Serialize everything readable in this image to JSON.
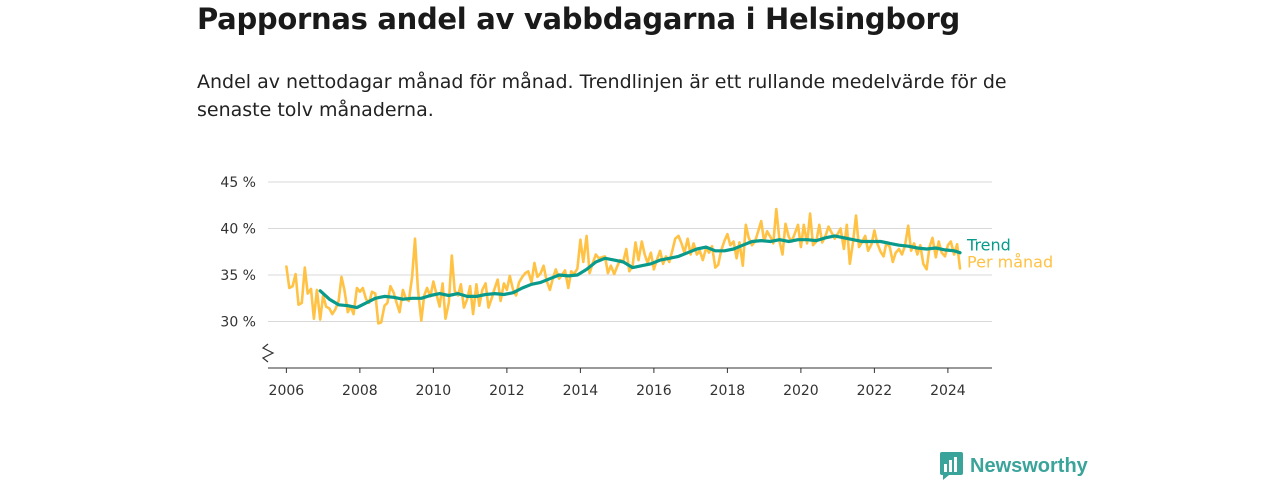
{
  "header": {
    "title": "Pappornas andel av vabbdagarna i Helsingborg",
    "subtitle": "Andel av nettodagar månad för månad. Trendlinjen är ett rullande medelvärde för de senaste tolv månaderna."
  },
  "brand": {
    "name": "Newsworthy",
    "color": "#3aa39a"
  },
  "chart_data": {
    "type": "line",
    "title": "Pappornas andel av vabbdagarna i Helsingborg",
    "subtitle": "Andel av nettodagar månad för månad. Trendlinjen är ett rullande medelvärde för de senaste tolv månaderna.",
    "xlabel": "",
    "ylabel": "",
    "xlim": [
      2005.5,
      2025.2
    ],
    "ylim": [
      25,
      45
    ],
    "y_axis_break": true,
    "y_ticks": [
      30,
      35,
      40,
      45
    ],
    "y_tick_labels": [
      "30 %",
      "35 %",
      "40 %",
      "45 %"
    ],
    "x_ticks": [
      2006,
      2008,
      2010,
      2012,
      2014,
      2016,
      2018,
      2020,
      2022,
      2024
    ],
    "x_tick_labels": [
      "2006",
      "2008",
      "2010",
      "2012",
      "2014",
      "2016",
      "2018",
      "2020",
      "2022",
      "2024"
    ],
    "grid": true,
    "legend": "direct labels at right end of lines",
    "series": [
      {
        "name": "Per månad",
        "color": "#ffc244",
        "points": [
          [
            2006.0,
            35.9
          ],
          [
            2006.08,
            33.6
          ],
          [
            2006.17,
            33.8
          ],
          [
            2006.25,
            35.1
          ],
          [
            2006.33,
            31.8
          ],
          [
            2006.42,
            32.0
          ],
          [
            2006.5,
            35.8
          ],
          [
            2006.58,
            33.0
          ],
          [
            2006.67,
            33.5
          ],
          [
            2006.75,
            30.3
          ],
          [
            2006.83,
            33.4
          ],
          [
            2006.92,
            30.2
          ],
          [
            2007.0,
            32.8
          ],
          [
            2007.08,
            31.6
          ],
          [
            2007.17,
            31.4
          ],
          [
            2007.25,
            30.8
          ],
          [
            2007.33,
            31.3
          ],
          [
            2007.42,
            32.2
          ],
          [
            2007.5,
            34.8
          ],
          [
            2007.58,
            33.4
          ],
          [
            2007.67,
            31.0
          ],
          [
            2007.75,
            31.6
          ],
          [
            2007.83,
            30.8
          ],
          [
            2007.92,
            33.6
          ],
          [
            2008.0,
            33.2
          ],
          [
            2008.08,
            33.6
          ],
          [
            2008.17,
            32.4
          ],
          [
            2008.25,
            32.0
          ],
          [
            2008.33,
            33.2
          ],
          [
            2008.42,
            33.0
          ],
          [
            2008.5,
            29.8
          ],
          [
            2008.58,
            29.9
          ],
          [
            2008.67,
            31.7
          ],
          [
            2008.75,
            32.0
          ],
          [
            2008.83,
            33.8
          ],
          [
            2008.92,
            33.1
          ],
          [
            2009.0,
            32.0
          ],
          [
            2009.08,
            31.0
          ],
          [
            2009.17,
            33.4
          ],
          [
            2009.25,
            32.5
          ],
          [
            2009.33,
            32.2
          ],
          [
            2009.42,
            34.8
          ],
          [
            2009.5,
            38.9
          ],
          [
            2009.58,
            33.5
          ],
          [
            2009.67,
            30.1
          ],
          [
            2009.75,
            32.8
          ],
          [
            2009.83,
            33.6
          ],
          [
            2009.92,
            32.7
          ],
          [
            2010.0,
            34.3
          ],
          [
            2010.08,
            33.0
          ],
          [
            2010.17,
            31.6
          ],
          [
            2010.25,
            34.1
          ],
          [
            2010.33,
            30.3
          ],
          [
            2010.42,
            32.0
          ],
          [
            2010.5,
            37.1
          ],
          [
            2010.58,
            33.3
          ],
          [
            2010.67,
            32.8
          ],
          [
            2010.75,
            34.0
          ],
          [
            2010.83,
            31.5
          ],
          [
            2010.92,
            32.4
          ],
          [
            2011.0,
            33.8
          ],
          [
            2011.08,
            30.8
          ],
          [
            2011.17,
            34.0
          ],
          [
            2011.25,
            31.7
          ],
          [
            2011.33,
            33.4
          ],
          [
            2011.42,
            34.1
          ],
          [
            2011.5,
            31.5
          ],
          [
            2011.58,
            32.4
          ],
          [
            2011.67,
            33.6
          ],
          [
            2011.75,
            34.5
          ],
          [
            2011.83,
            32.2
          ],
          [
            2011.92,
            34.1
          ],
          [
            2012.0,
            33.4
          ],
          [
            2012.08,
            34.9
          ],
          [
            2012.17,
            33.4
          ],
          [
            2012.25,
            32.8
          ],
          [
            2012.33,
            34.2
          ],
          [
            2012.42,
            34.8
          ],
          [
            2012.5,
            35.2
          ],
          [
            2012.58,
            35.4
          ],
          [
            2012.67,
            34.2
          ],
          [
            2012.75,
            36.3
          ],
          [
            2012.83,
            34.8
          ],
          [
            2012.92,
            35.2
          ],
          [
            2013.0,
            36.0
          ],
          [
            2013.08,
            34.4
          ],
          [
            2013.17,
            33.4
          ],
          [
            2013.25,
            34.6
          ],
          [
            2013.33,
            35.6
          ],
          [
            2013.42,
            34.6
          ],
          [
            2013.5,
            35.0
          ],
          [
            2013.58,
            35.5
          ],
          [
            2013.67,
            33.6
          ],
          [
            2013.75,
            35.4
          ],
          [
            2013.83,
            35.1
          ],
          [
            2013.92,
            35.7
          ],
          [
            2014.0,
            38.8
          ],
          [
            2014.08,
            36.4
          ],
          [
            2014.17,
            39.2
          ],
          [
            2014.25,
            35.2
          ],
          [
            2014.33,
            36.2
          ],
          [
            2014.42,
            37.2
          ],
          [
            2014.5,
            36.8
          ],
          [
            2014.58,
            36.9
          ],
          [
            2014.67,
            37.0
          ],
          [
            2014.75,
            35.2
          ],
          [
            2014.83,
            36.0
          ],
          [
            2014.92,
            35.1
          ],
          [
            2015.0,
            35.9
          ],
          [
            2015.08,
            36.6
          ],
          [
            2015.17,
            36.5
          ],
          [
            2015.25,
            37.8
          ],
          [
            2015.33,
            35.4
          ],
          [
            2015.42,
            36.0
          ],
          [
            2015.5,
            38.5
          ],
          [
            2015.58,
            36.6
          ],
          [
            2015.67,
            38.6
          ],
          [
            2015.75,
            37.2
          ],
          [
            2015.83,
            36.3
          ],
          [
            2015.92,
            37.4
          ],
          [
            2016.0,
            35.6
          ],
          [
            2016.08,
            36.6
          ],
          [
            2016.17,
            37.6
          ],
          [
            2016.25,
            36.2
          ],
          [
            2016.33,
            37.0
          ],
          [
            2016.42,
            36.4
          ],
          [
            2016.5,
            37.6
          ],
          [
            2016.58,
            38.9
          ],
          [
            2016.67,
            39.2
          ],
          [
            2016.75,
            38.4
          ],
          [
            2016.83,
            37.4
          ],
          [
            2016.92,
            38.9
          ],
          [
            2017.0,
            37.2
          ],
          [
            2017.08,
            38.4
          ],
          [
            2017.17,
            37.2
          ],
          [
            2017.25,
            37.6
          ],
          [
            2017.33,
            36.6
          ],
          [
            2017.42,
            37.9
          ],
          [
            2017.5,
            37.4
          ],
          [
            2017.58,
            38.1
          ],
          [
            2017.67,
            35.8
          ],
          [
            2017.75,
            36.1
          ],
          [
            2017.83,
            37.6
          ],
          [
            2017.92,
            38.7
          ],
          [
            2018.0,
            39.4
          ],
          [
            2018.08,
            38.2
          ],
          [
            2018.17,
            38.6
          ],
          [
            2018.25,
            36.8
          ],
          [
            2018.33,
            38.5
          ],
          [
            2018.42,
            36.0
          ],
          [
            2018.5,
            40.4
          ],
          [
            2018.58,
            39.0
          ],
          [
            2018.67,
            38.2
          ],
          [
            2018.75,
            38.6
          ],
          [
            2018.83,
            39.6
          ],
          [
            2018.92,
            40.8
          ],
          [
            2019.0,
            38.6
          ],
          [
            2019.08,
            39.7
          ],
          [
            2019.17,
            39.1
          ],
          [
            2019.25,
            38.4
          ],
          [
            2019.33,
            42.1
          ],
          [
            2019.42,
            38.6
          ],
          [
            2019.5,
            37.2
          ],
          [
            2019.58,
            40.5
          ],
          [
            2019.67,
            39.1
          ],
          [
            2019.75,
            38.6
          ],
          [
            2019.83,
            39.4
          ],
          [
            2019.92,
            40.4
          ],
          [
            2020.0,
            38.0
          ],
          [
            2020.08,
            40.4
          ],
          [
            2020.17,
            38.4
          ],
          [
            2020.25,
            41.6
          ],
          [
            2020.33,
            38.2
          ],
          [
            2020.42,
            38.6
          ],
          [
            2020.5,
            40.4
          ],
          [
            2020.58,
            38.5
          ],
          [
            2020.67,
            39.2
          ],
          [
            2020.75,
            40.2
          ],
          [
            2020.83,
            39.6
          ],
          [
            2020.92,
            38.9
          ],
          [
            2021.0,
            39.4
          ],
          [
            2021.08,
            40.0
          ],
          [
            2021.17,
            37.8
          ],
          [
            2021.25,
            40.4
          ],
          [
            2021.33,
            36.2
          ],
          [
            2021.42,
            38.6
          ],
          [
            2021.5,
            41.4
          ],
          [
            2021.58,
            38.0
          ],
          [
            2021.67,
            38.6
          ],
          [
            2021.75,
            39.2
          ],
          [
            2021.83,
            37.6
          ],
          [
            2021.92,
            38.3
          ],
          [
            2022.0,
            39.8
          ],
          [
            2022.08,
            38.4
          ],
          [
            2022.17,
            37.5
          ],
          [
            2022.25,
            37.0
          ],
          [
            2022.33,
            38.5
          ],
          [
            2022.42,
            38.0
          ],
          [
            2022.5,
            36.4
          ],
          [
            2022.58,
            37.4
          ],
          [
            2022.67,
            37.8
          ],
          [
            2022.75,
            37.2
          ],
          [
            2022.83,
            38.1
          ],
          [
            2022.92,
            40.3
          ],
          [
            2023.0,
            37.6
          ],
          [
            2023.08,
            38.4
          ],
          [
            2023.17,
            37.2
          ],
          [
            2023.25,
            38.2
          ],
          [
            2023.33,
            36.2
          ],
          [
            2023.42,
            35.6
          ],
          [
            2023.5,
            38.0
          ],
          [
            2023.58,
            39.0
          ],
          [
            2023.67,
            36.9
          ],
          [
            2023.75,
            38.6
          ],
          [
            2023.83,
            37.4
          ],
          [
            2023.92,
            37.0
          ],
          [
            2024.0,
            38.2
          ],
          [
            2024.08,
            38.6
          ],
          [
            2024.17,
            37.2
          ],
          [
            2024.25,
            38.3
          ],
          [
            2024.33,
            35.7
          ]
        ]
      },
      {
        "name": "Trend",
        "color": "#0a9a8c",
        "points": [
          [
            2006.92,
            33.3
          ],
          [
            2007.17,
            32.4
          ],
          [
            2007.42,
            31.8
          ],
          [
            2007.67,
            31.7
          ],
          [
            2007.92,
            31.5
          ],
          [
            2008.17,
            32.0
          ],
          [
            2008.42,
            32.5
          ],
          [
            2008.67,
            32.7
          ],
          [
            2008.92,
            32.6
          ],
          [
            2009.17,
            32.4
          ],
          [
            2009.42,
            32.5
          ],
          [
            2009.67,
            32.5
          ],
          [
            2009.92,
            32.8
          ],
          [
            2010.17,
            33.0
          ],
          [
            2010.42,
            32.8
          ],
          [
            2010.67,
            33.0
          ],
          [
            2010.92,
            32.7
          ],
          [
            2011.17,
            32.7
          ],
          [
            2011.42,
            32.9
          ],
          [
            2011.67,
            33.0
          ],
          [
            2011.92,
            32.9
          ],
          [
            2012.17,
            33.1
          ],
          [
            2012.42,
            33.6
          ],
          [
            2012.67,
            34.0
          ],
          [
            2012.92,
            34.2
          ],
          [
            2013.17,
            34.6
          ],
          [
            2013.42,
            35.0
          ],
          [
            2013.67,
            34.9
          ],
          [
            2013.92,
            35.0
          ],
          [
            2014.17,
            35.6
          ],
          [
            2014.42,
            36.4
          ],
          [
            2014.67,
            36.8
          ],
          [
            2014.92,
            36.6
          ],
          [
            2015.17,
            36.4
          ],
          [
            2015.42,
            35.8
          ],
          [
            2015.67,
            36.0
          ],
          [
            2015.92,
            36.2
          ],
          [
            2016.17,
            36.6
          ],
          [
            2016.42,
            36.8
          ],
          [
            2016.67,
            37.0
          ],
          [
            2016.92,
            37.4
          ],
          [
            2017.17,
            37.8
          ],
          [
            2017.42,
            38.0
          ],
          [
            2017.67,
            37.6
          ],
          [
            2017.92,
            37.6
          ],
          [
            2018.17,
            37.8
          ],
          [
            2018.42,
            38.2
          ],
          [
            2018.67,
            38.6
          ],
          [
            2018.92,
            38.7
          ],
          [
            2019.17,
            38.6
          ],
          [
            2019.42,
            38.8
          ],
          [
            2019.67,
            38.6
          ],
          [
            2019.92,
            38.8
          ],
          [
            2020.17,
            38.8
          ],
          [
            2020.42,
            38.7
          ],
          [
            2020.67,
            39.0
          ],
          [
            2020.92,
            39.2
          ],
          [
            2021.17,
            39.0
          ],
          [
            2021.42,
            38.8
          ],
          [
            2021.67,
            38.6
          ],
          [
            2021.92,
            38.6
          ],
          [
            2022.17,
            38.6
          ],
          [
            2022.42,
            38.4
          ],
          [
            2022.67,
            38.2
          ],
          [
            2022.92,
            38.1
          ],
          [
            2023.17,
            37.9
          ],
          [
            2023.42,
            37.8
          ],
          [
            2023.67,
            37.9
          ],
          [
            2023.92,
            37.7
          ],
          [
            2024.17,
            37.6
          ],
          [
            2024.33,
            37.4
          ]
        ]
      }
    ]
  }
}
